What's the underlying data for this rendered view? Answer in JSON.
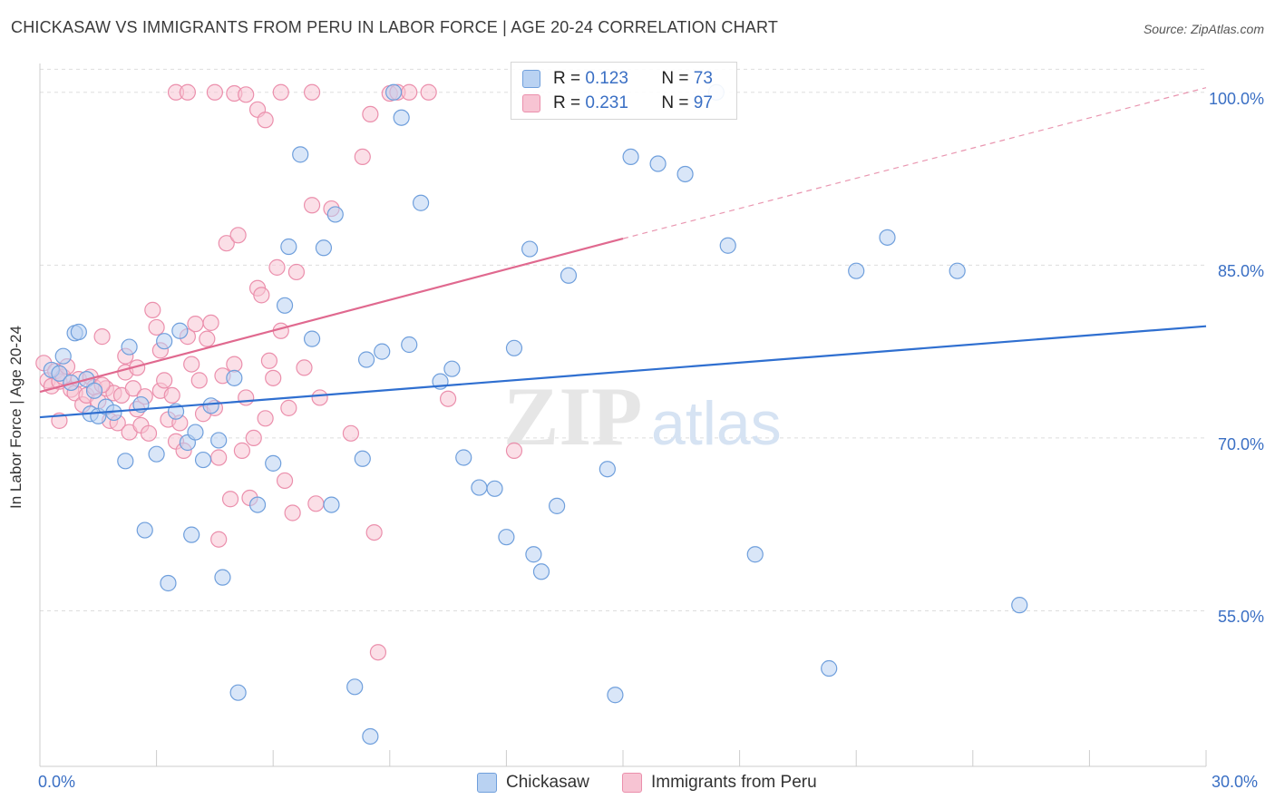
{
  "title": "CHICKASAW VS IMMIGRANTS FROM PERU IN LABOR FORCE | AGE 20-24 CORRELATION CHART",
  "source": "Source: ZipAtlas.com",
  "watermark": {
    "zip": "ZIP",
    "atlas": "atlas"
  },
  "legend": {
    "rows": [
      {
        "r_label": "R =",
        "r_value": "0.123",
        "n_label": "N =",
        "n_value": "73"
      },
      {
        "r_label": "R =",
        "r_value": "0.231",
        "n_label": "N =",
        "n_value": "97"
      }
    ]
  },
  "bottom_legend": {
    "series1": "Chickasaw",
    "series2": "Immigrants from Peru"
  },
  "colors": {
    "blue_fill": "#b9d2f2",
    "blue_stroke": "#6f9fdc",
    "blue_line": "#2f6fd0",
    "pink_fill": "#f7c4d3",
    "pink_stroke": "#eb8fac",
    "pink_line": "#e0698f",
    "axis_text": "#3a6fc4",
    "grid": "#dddddd"
  },
  "chart_data": {
    "type": "scatter",
    "title": "CHICKASAW VS IMMIGRANTS FROM PERU IN LABOR FORCE | AGE 20-24 CORRELATION CHART",
    "xlabel": "",
    "ylabel": "In Labor Force | Age 20-24",
    "xlim": [
      0,
      30
    ],
    "ylim": [
      41.5,
      102.5
    ],
    "x_tick_labels": [
      "0.0%",
      "30.0%"
    ],
    "y_ticks": [
      100,
      85,
      70,
      55
    ],
    "y_tick_labels": [
      "100.0%",
      "85.0%",
      "70.0%",
      "55.0%"
    ],
    "series": [
      {
        "name": "Chickasaw",
        "r": 0.123,
        "n": 73,
        "trend": {
          "x0": 0,
          "y0": 71.8,
          "x1": 30,
          "y1": 79.7
        },
        "points": [
          [
            0.3,
            75.9
          ],
          [
            0.6,
            77.1
          ],
          [
            0.9,
            79.1
          ],
          [
            1.0,
            79.2
          ],
          [
            1.2,
            75.1
          ],
          [
            1.3,
            72.1
          ],
          [
            1.5,
            71.9
          ],
          [
            1.7,
            72.7
          ],
          [
            1.9,
            72.2
          ],
          [
            2.2,
            68.0
          ],
          [
            2.3,
            77.9
          ],
          [
            2.6,
            72.9
          ],
          [
            2.7,
            62.0
          ],
          [
            3.0,
            68.6
          ],
          [
            3.3,
            57.4
          ],
          [
            3.5,
            72.3
          ],
          [
            3.6,
            79.3
          ],
          [
            3.8,
            69.6
          ],
          [
            3.9,
            61.6
          ],
          [
            4.0,
            70.5
          ],
          [
            4.2,
            68.1
          ],
          [
            4.4,
            72.8
          ],
          [
            4.6,
            69.8
          ],
          [
            4.7,
            57.9
          ],
          [
            5.0,
            75.2
          ],
          [
            5.1,
            47.9
          ],
          [
            5.6,
            64.2
          ],
          [
            6.0,
            67.8
          ],
          [
            6.3,
            81.5
          ],
          [
            6.4,
            86.6
          ],
          [
            6.7,
            94.6
          ],
          [
            7.0,
            78.6
          ],
          [
            7.3,
            86.5
          ],
          [
            7.5,
            64.2
          ],
          [
            7.6,
            89.4
          ],
          [
            8.1,
            48.4
          ],
          [
            8.3,
            68.2
          ],
          [
            8.4,
            76.8
          ],
          [
            8.5,
            44.1
          ],
          [
            8.8,
            77.5
          ],
          [
            9.1,
            100.0
          ],
          [
            9.3,
            97.8
          ],
          [
            9.5,
            78.1
          ],
          [
            9.8,
            90.4
          ],
          [
            10.3,
            74.9
          ],
          [
            10.6,
            76.0
          ],
          [
            10.9,
            68.3
          ],
          [
            11.3,
            65.7
          ],
          [
            11.7,
            65.6
          ],
          [
            12.0,
            61.4
          ],
          [
            12.2,
            77.8
          ],
          [
            12.6,
            86.4
          ],
          [
            12.7,
            59.9
          ],
          [
            12.9,
            58.4
          ],
          [
            13.3,
            64.1
          ],
          [
            13.6,
            84.1
          ],
          [
            14.6,
            67.3
          ],
          [
            14.8,
            47.7
          ],
          [
            15.2,
            94.4
          ],
          [
            15.9,
            93.8
          ],
          [
            16.6,
            92.9
          ],
          [
            17.4,
            100.0
          ],
          [
            17.7,
            86.7
          ],
          [
            18.4,
            59.9
          ],
          [
            20.3,
            50.0
          ],
          [
            21.0,
            84.5
          ],
          [
            21.8,
            87.4
          ],
          [
            23.6,
            84.5
          ],
          [
            25.2,
            55.5
          ],
          [
            0.5,
            75.6
          ],
          [
            0.8,
            74.8
          ],
          [
            1.4,
            74.1
          ],
          [
            3.2,
            78.4
          ]
        ]
      },
      {
        "name": "Immigrants from Peru",
        "r": 0.231,
        "n": 97,
        "trend": {
          "x0": 0,
          "y0": 74.0,
          "x1": 15.0,
          "y1": 87.3,
          "dash_x1": 30,
          "dash_y1": 100.4
        },
        "points": [
          [
            0.1,
            76.5
          ],
          [
            0.2,
            75.0
          ],
          [
            0.3,
            74.5
          ],
          [
            0.4,
            75.8
          ],
          [
            0.5,
            71.5
          ],
          [
            0.5,
            74.9
          ],
          [
            0.6,
            75.3
          ],
          [
            0.7,
            76.2
          ],
          [
            0.8,
            74.2
          ],
          [
            0.9,
            73.9
          ],
          [
            1.0,
            75.1
          ],
          [
            1.1,
            72.9
          ],
          [
            1.2,
            73.7
          ],
          [
            1.3,
            75.3
          ],
          [
            1.4,
            74.4
          ],
          [
            1.5,
            73.2
          ],
          [
            1.6,
            78.8
          ],
          [
            1.7,
            74.3
          ],
          [
            1.8,
            71.5
          ],
          [
            1.9,
            73.9
          ],
          [
            2.0,
            71.3
          ],
          [
            2.1,
            73.7
          ],
          [
            2.2,
            75.7
          ],
          [
            2.2,
            77.1
          ],
          [
            2.3,
            70.5
          ],
          [
            2.4,
            74.3
          ],
          [
            2.5,
            72.5
          ],
          [
            2.6,
            71.1
          ],
          [
            2.7,
            73.6
          ],
          [
            2.8,
            70.4
          ],
          [
            2.9,
            81.1
          ],
          [
            3.0,
            79.6
          ],
          [
            3.1,
            74.1
          ],
          [
            3.1,
            77.6
          ],
          [
            3.2,
            75.0
          ],
          [
            3.3,
            71.6
          ],
          [
            3.4,
            73.7
          ],
          [
            3.5,
            69.7
          ],
          [
            3.6,
            71.3
          ],
          [
            3.7,
            68.9
          ],
          [
            3.8,
            78.8
          ],
          [
            3.9,
            76.4
          ],
          [
            4.0,
            79.9
          ],
          [
            4.1,
            75.0
          ],
          [
            4.2,
            72.1
          ],
          [
            4.3,
            78.6
          ],
          [
            4.4,
            80.0
          ],
          [
            4.5,
            72.6
          ],
          [
            4.6,
            68.3
          ],
          [
            4.7,
            75.4
          ],
          [
            4.8,
            86.9
          ],
          [
            4.9,
            64.7
          ],
          [
            5.0,
            76.4
          ],
          [
            5.1,
            87.6
          ],
          [
            5.2,
            68.9
          ],
          [
            5.3,
            73.5
          ],
          [
            5.4,
            64.8
          ],
          [
            5.5,
            70.0
          ],
          [
            5.6,
            83.0
          ],
          [
            5.7,
            82.4
          ],
          [
            5.8,
            71.7
          ],
          [
            5.9,
            76.7
          ],
          [
            6.0,
            75.2
          ],
          [
            6.1,
            84.8
          ],
          [
            6.2,
            79.3
          ],
          [
            6.3,
            66.3
          ],
          [
            6.4,
            72.6
          ],
          [
            6.5,
            63.5
          ],
          [
            6.6,
            84.4
          ],
          [
            6.8,
            76.1
          ],
          [
            7.0,
            90.2
          ],
          [
            7.1,
            64.3
          ],
          [
            7.2,
            73.5
          ],
          [
            7.5,
            89.9
          ],
          [
            8.0,
            70.4
          ],
          [
            8.3,
            94.4
          ],
          [
            8.5,
            98.1
          ],
          [
            8.6,
            61.8
          ],
          [
            8.7,
            51.4
          ],
          [
            9.0,
            99.9
          ],
          [
            9.2,
            100.0
          ],
          [
            9.5,
            100.0
          ],
          [
            4.5,
            100.0
          ],
          [
            3.5,
            100.0
          ],
          [
            3.8,
            100.0
          ],
          [
            5.0,
            99.9
          ],
          [
            5.3,
            99.8
          ],
          [
            5.6,
            98.5
          ],
          [
            5.8,
            97.6
          ],
          [
            6.2,
            100.0
          ],
          [
            7.0,
            100.0
          ],
          [
            10.0,
            100.0
          ],
          [
            10.5,
            73.4
          ],
          [
            12.2,
            68.9
          ],
          [
            4.6,
            61.2
          ],
          [
            2.5,
            76.1
          ],
          [
            1.6,
            74.6
          ]
        ]
      }
    ]
  }
}
